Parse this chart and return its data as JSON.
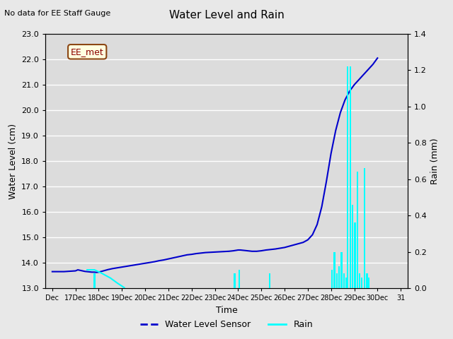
{
  "title": "Water Level and Rain",
  "subtitle": "No data for EE Staff Gauge",
  "ylabel_left": "Water Level (cm)",
  "ylabel_right": "Rain (mm)",
  "xlabel": "Time",
  "annotation_label": "EE_met",
  "ylim_left": [
    13.0,
    23.0
  ],
  "ylim_right": [
    0.0,
    1.4
  ],
  "yticks_left": [
    13.0,
    14.0,
    15.0,
    16.0,
    17.0,
    18.0,
    19.0,
    20.0,
    21.0,
    22.0,
    23.0
  ],
  "yticks_right": [
    0.0,
    0.2,
    0.4,
    0.6,
    0.8,
    1.0,
    1.2,
    1.4
  ],
  "xtick_positions": [
    0,
    1,
    2,
    3,
    4,
    5,
    6,
    7,
    8,
    9,
    10,
    11,
    12,
    13,
    14,
    15
  ],
  "xtick_labels": [
    "Dec",
    "17Dec",
    "18Dec",
    "19Dec",
    "20Dec",
    "21Dec",
    "22Dec",
    "23Dec",
    "24Dec",
    "25Dec",
    "26Dec",
    "27Dec",
    "28Dec",
    "29Dec",
    "30Dec",
    "31"
  ],
  "water_level_color": "#0000cc",
  "rain_color": "#00ffff",
  "legend_entries": [
    "Water Level Sensor",
    "Rain"
  ],
  "fig_bg_color": "#e8e8e8",
  "plot_bg_color": "#dcdcdc",
  "water_level_x": [
    0.0,
    0.5,
    1.0,
    1.1,
    1.2,
    1.4,
    1.5,
    1.6,
    1.7,
    1.8,
    1.9,
    2.0,
    2.2,
    2.4,
    2.6,
    2.8,
    3.0,
    3.2,
    3.4,
    3.6,
    3.8,
    4.0,
    4.2,
    4.4,
    4.6,
    4.8,
    5.0,
    5.2,
    5.4,
    5.6,
    5.8,
    6.0,
    6.2,
    6.4,
    6.6,
    6.8,
    7.0,
    7.2,
    7.4,
    7.6,
    7.8,
    8.0,
    8.1,
    8.2,
    8.3,
    8.4,
    8.5,
    8.6,
    8.8,
    9.0,
    9.2,
    9.4,
    9.6,
    9.8,
    10.0,
    10.2,
    10.4,
    10.6,
    10.8,
    11.0,
    11.2,
    11.4,
    11.6,
    11.8,
    12.0,
    12.2,
    12.4,
    12.6,
    12.8,
    13.0,
    13.2,
    13.4,
    13.6,
    13.8,
    14.0
  ],
  "water_level_y": [
    13.65,
    13.65,
    13.68,
    13.72,
    13.7,
    13.66,
    13.65,
    13.64,
    13.63,
    13.63,
    13.62,
    13.63,
    13.68,
    13.73,
    13.77,
    13.8,
    13.83,
    13.86,
    13.89,
    13.92,
    13.95,
    13.98,
    14.01,
    14.04,
    14.08,
    14.11,
    14.15,
    14.19,
    14.23,
    14.27,
    14.31,
    14.33,
    14.36,
    14.38,
    14.4,
    14.41,
    14.42,
    14.43,
    14.44,
    14.45,
    14.47,
    14.5,
    14.5,
    14.49,
    14.48,
    14.47,
    14.46,
    14.45,
    14.45,
    14.47,
    14.5,
    14.52,
    14.54,
    14.57,
    14.6,
    14.65,
    14.7,
    14.75,
    14.8,
    14.9,
    15.1,
    15.5,
    16.2,
    17.2,
    18.3,
    19.2,
    19.9,
    20.4,
    20.75,
    21.0,
    21.2,
    21.4,
    21.6,
    21.8,
    22.05
  ],
  "rain_bars": [
    {
      "x": 1.82,
      "height": 0.08
    },
    {
      "x": 7.85,
      "height": 0.08
    },
    {
      "x": 8.05,
      "height": 0.1
    },
    {
      "x": 9.35,
      "height": 0.08
    },
    {
      "x": 12.05,
      "height": 0.1
    },
    {
      "x": 12.15,
      "height": 0.2
    },
    {
      "x": 12.25,
      "height": 0.08
    },
    {
      "x": 12.35,
      "height": 0.12
    },
    {
      "x": 12.45,
      "height": 0.2
    },
    {
      "x": 12.55,
      "height": 0.08
    },
    {
      "x": 12.65,
      "height": 0.06
    },
    {
      "x": 12.72,
      "height": 1.22
    },
    {
      "x": 12.83,
      "height": 1.22
    },
    {
      "x": 12.93,
      "height": 0.46
    },
    {
      "x": 13.03,
      "height": 0.36
    },
    {
      "x": 13.13,
      "height": 0.64
    },
    {
      "x": 13.23,
      "height": 0.08
    },
    {
      "x": 13.33,
      "height": 0.06
    },
    {
      "x": 13.45,
      "height": 0.66
    },
    {
      "x": 13.55,
      "height": 0.08
    },
    {
      "x": 13.63,
      "height": 0.06
    }
  ],
  "cyan_line_x": [
    1.5,
    1.82,
    2.1,
    2.5,
    2.8,
    3.1
  ],
  "cyan_line_y": [
    13.72,
    13.72,
    13.6,
    13.4,
    13.2,
    13.02
  ]
}
